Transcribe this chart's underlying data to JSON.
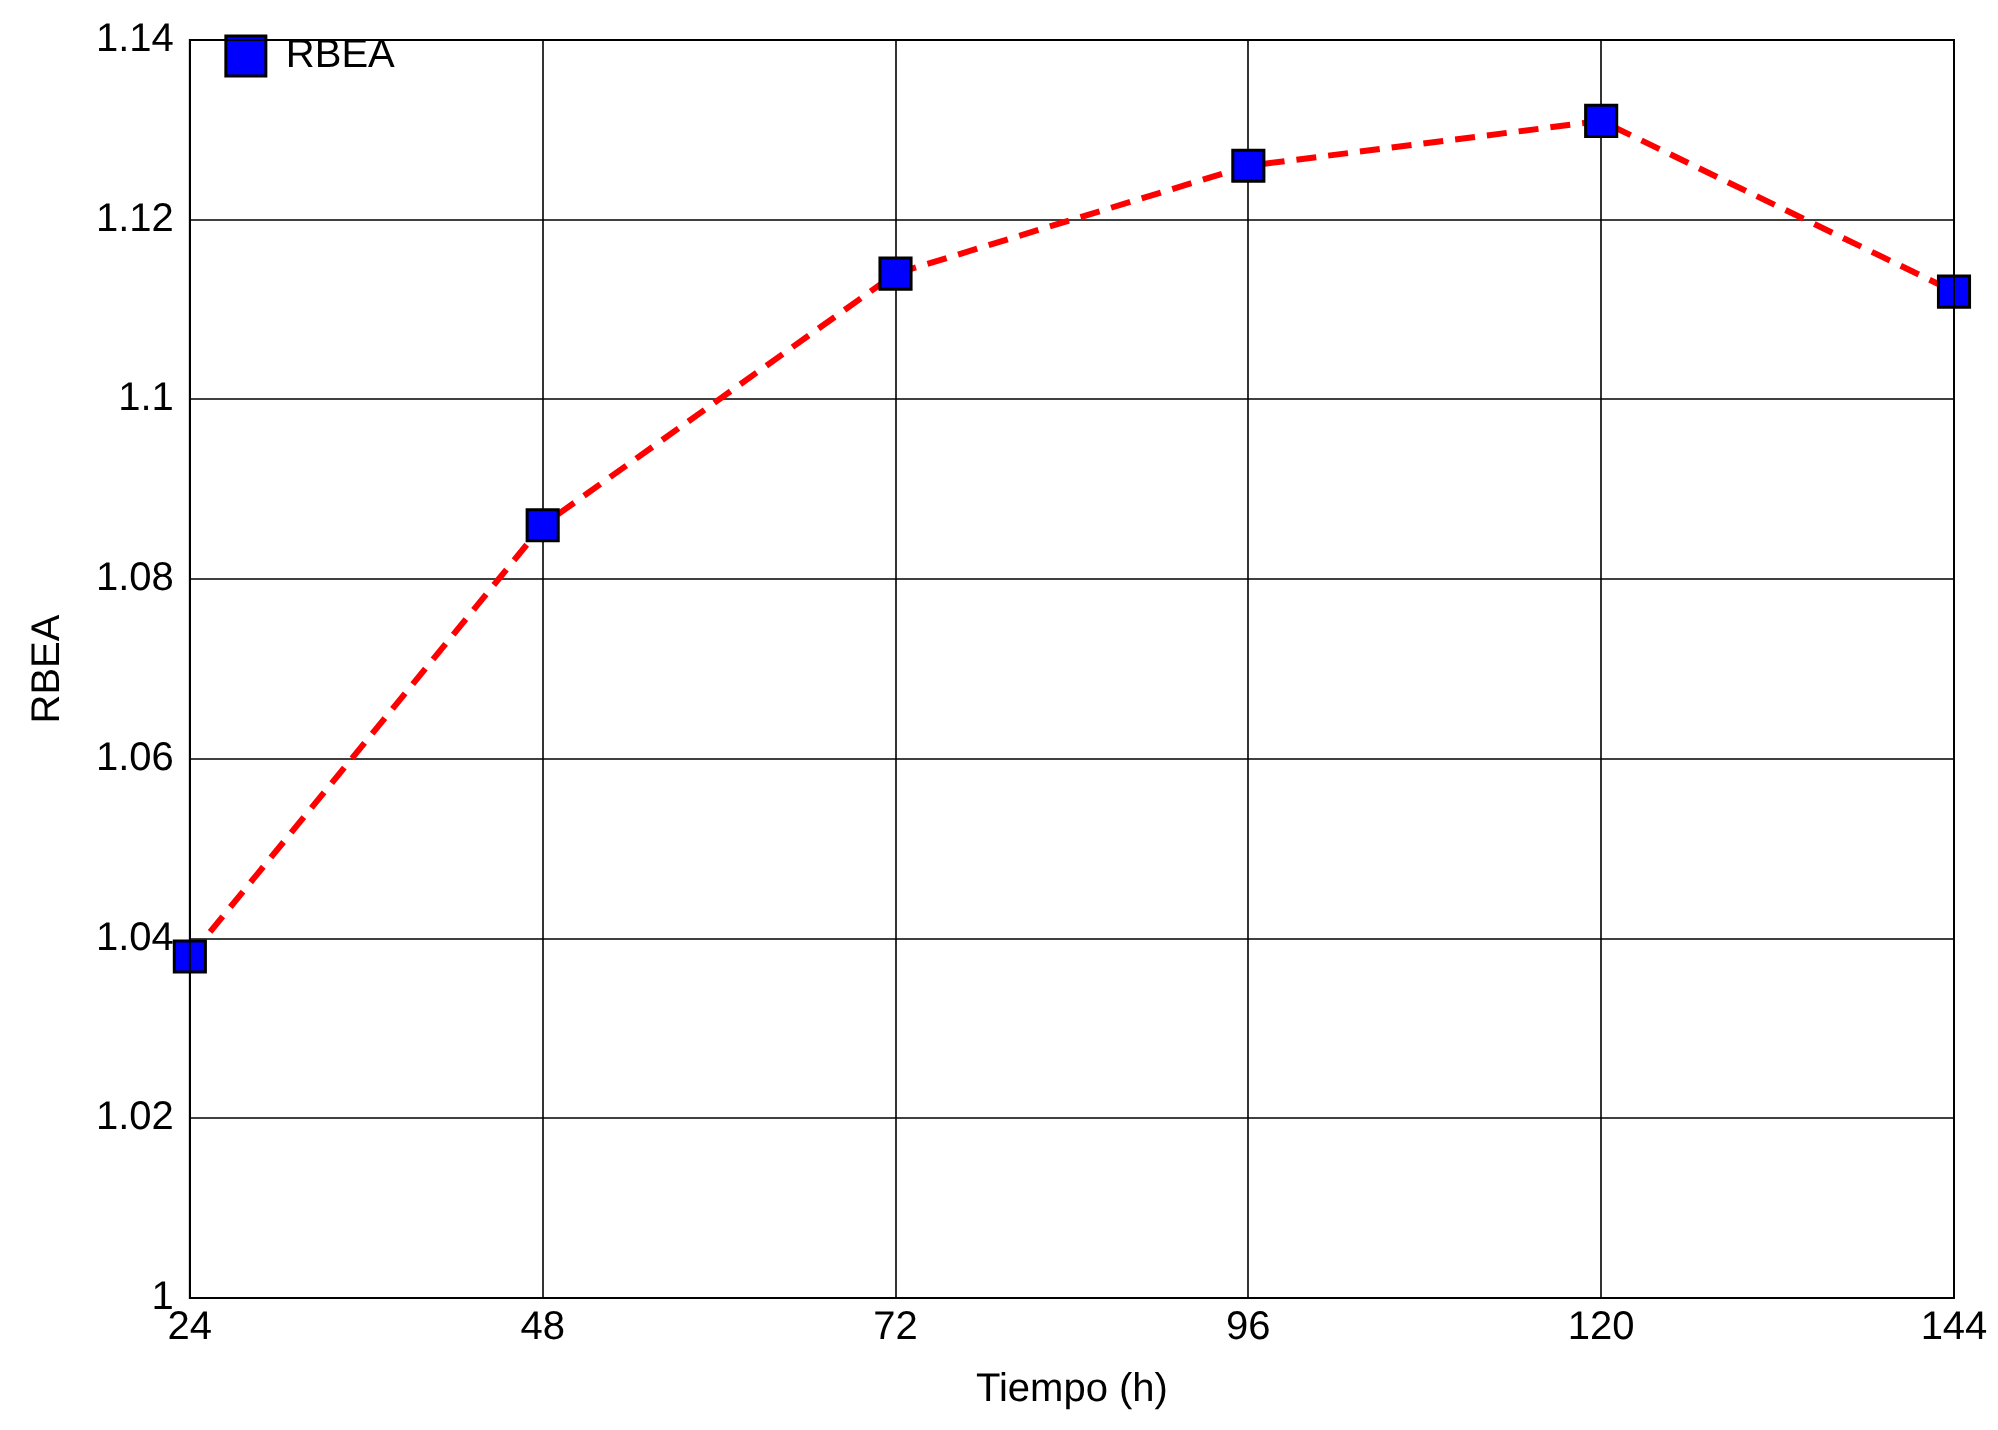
{
  "chart_data": {
    "type": "line",
    "xlabel": "Tiempo (h)",
    "ylabel": "RBEA",
    "x": [
      24,
      48,
      72,
      96,
      120,
      144
    ],
    "series": [
      {
        "name": "RBEA",
        "color": "#ff0000",
        "colors": [
          "#0000ff",
          "#0000ff",
          "#0000ff",
          "#0000ff",
          "#0000ff",
          "#0000ff"
        ],
        "values": [
          1.038,
          1.086,
          1.114,
          1.126,
          1.131,
          1.112
        ]
      }
    ],
    "xlim": [
      24,
      144
    ],
    "xticks": [
      24,
      48,
      72,
      96,
      120,
      144
    ],
    "ylim": [
      1,
      1.14
    ],
    "yticks": [
      1,
      1.02,
      1.04,
      1.06,
      1.08,
      1.1,
      1.12,
      1.14
    ],
    "grid": true,
    "legend": "top left",
    "marker": "square",
    "line_style": "dashed"
  }
}
